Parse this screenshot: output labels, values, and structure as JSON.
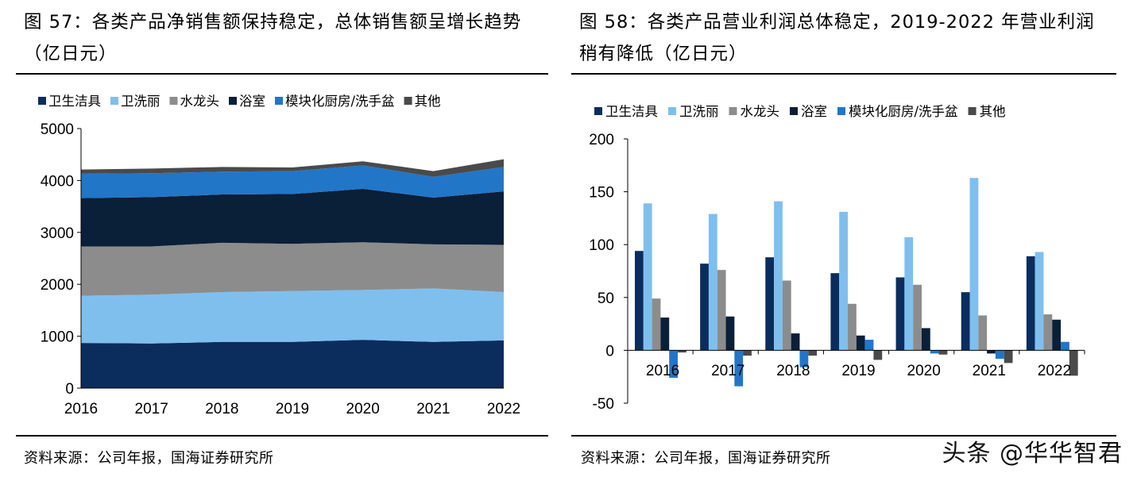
{
  "source_left": "资料来源：公司年报，国海证券研究所",
  "source_right": "资料来源：公司年报，国海证券研究所",
  "watermark": "头条 @华华智君",
  "colors": {
    "卫生洁具": "#0b2d5e",
    "卫洗丽": "#7fbfee",
    "水龙头": "#8c8c8c",
    "浴室": "#0a1f38",
    "模块化厨房/洗手盆": "#2176c8",
    "其他": "#4a4a4a"
  },
  "chart_data": [
    {
      "type": "area",
      "stacked": true,
      "title": "图 57：各类产品净销售额保持稳定，总体销售额呈增长趋势（亿日元）",
      "categories": [
        "2016",
        "2017",
        "2018",
        "2019",
        "2020",
        "2021",
        "2022"
      ],
      "series": [
        {
          "name": "卫生洁具",
          "values": [
            870,
            860,
            890,
            890,
            930,
            890,
            920
          ]
        },
        {
          "name": "卫洗丽",
          "values": [
            910,
            940,
            960,
            980,
            960,
            1030,
            930
          ]
        },
        {
          "name": "水龙头",
          "values": [
            950,
            930,
            950,
            910,
            920,
            850,
            910
          ]
        },
        {
          "name": "浴室",
          "values": [
            930,
            950,
            930,
            960,
            1030,
            900,
            1030
          ]
        },
        {
          "name": "模块化厨房/洗手盆",
          "values": [
            470,
            460,
            440,
            440,
            450,
            400,
            470
          ]
        },
        {
          "name": "其他",
          "values": [
            80,
            90,
            90,
            70,
            80,
            110,
            150
          ]
        }
      ],
      "yticks": [
        0,
        1000,
        2000,
        3000,
        4000,
        5000
      ],
      "ylim": [
        0,
        5000
      ],
      "legend": "top"
    },
    {
      "type": "bar",
      "title": "图 58：各类产品营业利润总体稳定，2019-2022 年营业利润稍有降低（亿日元）",
      "categories": [
        "2016",
        "2017",
        "2018",
        "2019",
        "2020",
        "2021",
        "2022"
      ],
      "series": [
        {
          "name": "卫生洁具",
          "values": [
            94,
            82,
            88,
            73,
            69,
            55,
            89
          ]
        },
        {
          "name": "卫洗丽",
          "values": [
            139,
            129,
            141,
            131,
            107,
            163,
            93
          ]
        },
        {
          "name": "水龙头",
          "values": [
            49,
            76,
            66,
            44,
            62,
            33,
            34
          ]
        },
        {
          "name": "浴室",
          "values": [
            31,
            32,
            16,
            14,
            21,
            -3,
            29
          ]
        },
        {
          "name": "模块化厨房/洗手盆",
          "values": [
            -26,
            -34,
            -16,
            10,
            -3,
            -8,
            8
          ]
        },
        {
          "name": "其他",
          "values": [
            -2,
            -5,
            -5,
            -9,
            -4,
            -12,
            -24
          ]
        }
      ],
      "yticks": [
        -50,
        0,
        50,
        100,
        150,
        200
      ],
      "ylim": [
        -50,
        200
      ],
      "legend": "top"
    }
  ]
}
